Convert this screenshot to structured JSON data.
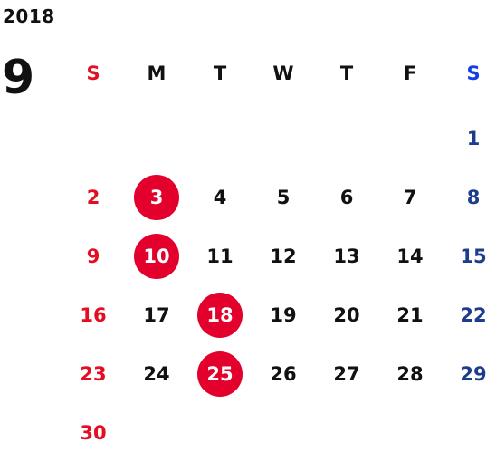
{
  "calendar": {
    "year": "2018",
    "month": "9",
    "weekdays": [
      "S",
      "M",
      "T",
      "W",
      "T",
      "F",
      "S"
    ],
    "first_weekday_index": 6,
    "days": [
      "1",
      "2",
      "3",
      "4",
      "5",
      "6",
      "7",
      "8",
      "9",
      "10",
      "11",
      "12",
      "13",
      "14",
      "15",
      "16",
      "17",
      "18",
      "19",
      "20",
      "21",
      "22",
      "23",
      "24",
      "25",
      "26",
      "27",
      "28",
      "29",
      "30"
    ],
    "holidays": [
      "3",
      "10",
      "18",
      "25"
    ],
    "colors": {
      "sunday": "#e30e21",
      "saturday": "#1c3c8c",
      "saturday_header": "#1440e0",
      "holiday_fill": "#e3002c",
      "holiday_text": "#ffffff",
      "weekday": "#111111"
    }
  }
}
